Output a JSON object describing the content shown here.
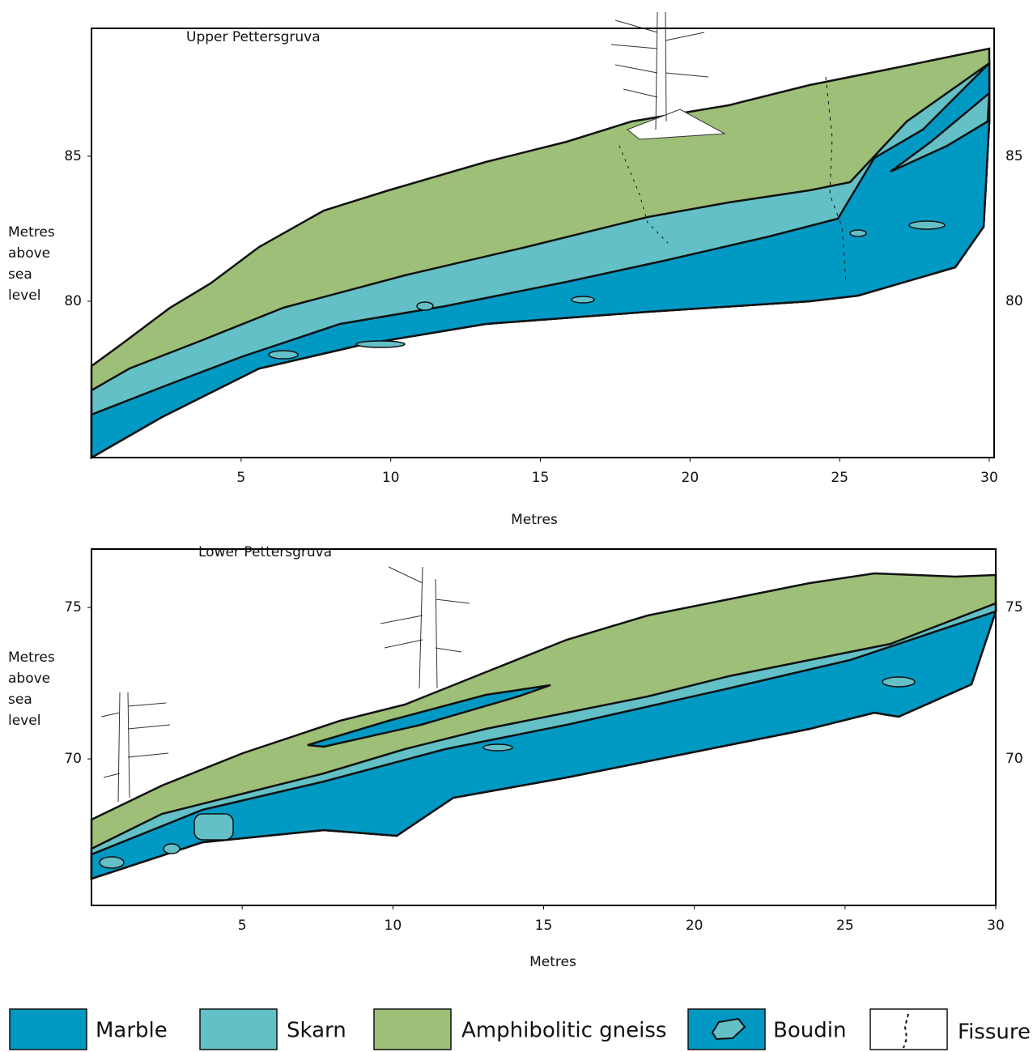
{
  "upper": {
    "title": "Upper Pettersgruva",
    "y_label": [
      "Metres",
      "above",
      "sea",
      "level"
    ],
    "x_label": "Metres",
    "xlim": [
      0,
      30
    ],
    "xticks": [
      5,
      10,
      15,
      20,
      25,
      30
    ],
    "ylim": [
      74.61,
      89.41
    ],
    "yticks": [
      80,
      85
    ]
  },
  "lower": {
    "title": "Lower Pettersgruva",
    "y_label": [
      "Metres",
      "above",
      "sea",
      "level"
    ],
    "x_label": "Metres",
    "xlim": [
      0,
      30
    ],
    "xticks": [
      5,
      10,
      15,
      20,
      25,
      30
    ],
    "ylim": [
      65.16,
      76.93
    ],
    "yticks": [
      70,
      75
    ]
  },
  "legend": [
    "Marble",
    "Skarn",
    "Amphibolitic gneiss",
    "Boudin",
    "Fissure"
  ]
}
